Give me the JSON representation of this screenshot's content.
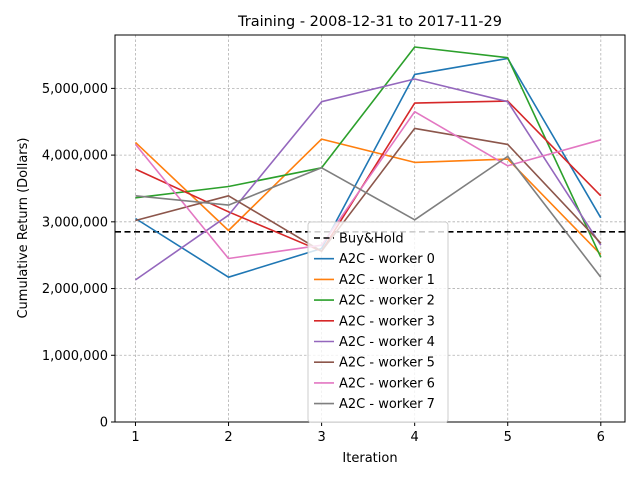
{
  "chart_data": {
    "type": "line",
    "title": "Training - 2008-12-31 to 2017-11-29",
    "xlabel": "Iteration",
    "ylabel": "Cumulative Return (Dollars)",
    "x": [
      1,
      2,
      3,
      4,
      5,
      6
    ],
    "xlim": [
      0.78,
      6.26
    ],
    "ylim": [
      0,
      5800000
    ],
    "xticks": [
      1,
      2,
      3,
      4,
      5,
      6
    ],
    "xtick_labels": [
      "1",
      "2",
      "3",
      "4",
      "5",
      "6"
    ],
    "yticks": [
      0,
      1000000,
      2000000,
      3000000,
      4000000,
      5000000
    ],
    "ytick_labels": [
      "0",
      "1,000,000",
      "2,000,000",
      "3,000,000",
      "4,000,000",
      "5,000,000"
    ],
    "grid": true,
    "legend_position": "lower-center",
    "reference_line": {
      "name": "Buy&Hold",
      "value": 2850000,
      "style": "dashed",
      "color": "#000000"
    },
    "series": [
      {
        "name": "A2C - worker 0",
        "color": "#1f77b4",
        "values": [
          3050000,
          2170000,
          2600000,
          5210000,
          5450000,
          3060000
        ]
      },
      {
        "name": "A2C - worker 1",
        "color": "#ff7f0e",
        "values": [
          4190000,
          2870000,
          4240000,
          3890000,
          3940000,
          2510000
        ]
      },
      {
        "name": "A2C - worker 2",
        "color": "#2ca02c",
        "values": [
          3360000,
          3530000,
          3810000,
          5620000,
          5460000,
          2470000
        ]
      },
      {
        "name": "A2C - worker 3",
        "color": "#d62728",
        "values": [
          3790000,
          3150000,
          2560000,
          4780000,
          4810000,
          3390000
        ]
      },
      {
        "name": "A2C - worker 4",
        "color": "#9467bd",
        "values": [
          2130000,
          3100000,
          4800000,
          5140000,
          4800000,
          2650000
        ]
      },
      {
        "name": "A2C - worker 5",
        "color": "#8c564b",
        "values": [
          3020000,
          3390000,
          2560000,
          4400000,
          4160000,
          2680000
        ]
      },
      {
        "name": "A2C - worker 6",
        "color": "#e377c2",
        "values": [
          4160000,
          2450000,
          2650000,
          4650000,
          3840000,
          4230000
        ]
      },
      {
        "name": "A2C - worker 7",
        "color": "#7f7f7f",
        "values": [
          3390000,
          3250000,
          3810000,
          3030000,
          3980000,
          2170000
        ]
      }
    ]
  }
}
